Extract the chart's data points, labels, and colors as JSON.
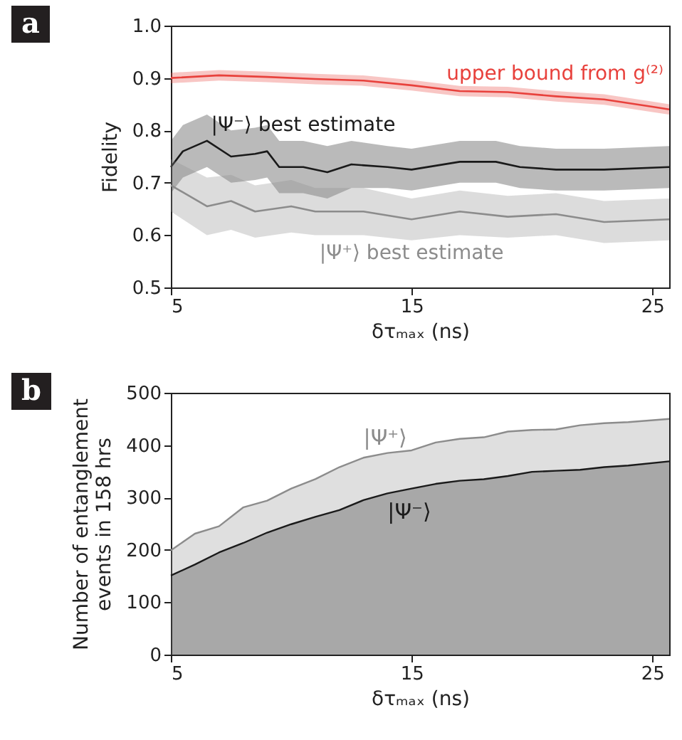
{
  "chart_data": [
    {
      "type": "line",
      "title": "a",
      "xlabel": "δτₘₐₓ (ns)",
      "ylabel": "Fidelity",
      "xlim": [
        5,
        25.7
      ],
      "xticks": [
        5,
        15,
        25
      ],
      "ylim": [
        0.5,
        1.0
      ],
      "yticks": [
        0.5,
        0.6,
        0.7,
        0.8,
        0.9,
        {
          "value": 1.0,
          "label": "1.0"
        }
      ],
      "grid": false,
      "marker": "none",
      "series": [
        {
          "name": "upper bound from g⁽²⁾",
          "color": "#e8413c",
          "x": [
            5,
            7,
            9,
            11,
            13,
            15,
            17,
            19,
            21,
            23,
            25,
            25.7
          ],
          "values": [
            0.9,
            0.905,
            0.902,
            0.898,
            0.895,
            0.886,
            0.875,
            0.873,
            0.865,
            0.859,
            0.845,
            0.84
          ],
          "lower": [
            0.89,
            0.895,
            0.892,
            0.888,
            0.885,
            0.876,
            0.865,
            0.863,
            0.855,
            0.849,
            0.835,
            0.83
          ],
          "upper": [
            0.91,
            0.915,
            0.912,
            0.908,
            0.905,
            0.896,
            0.885,
            0.883,
            0.875,
            0.869,
            0.855,
            0.85
          ]
        },
        {
          "name": "|Ψ⁻⟩ best estimate",
          "color": "#1a1a1a",
          "x": [
            5,
            5.5,
            6.5,
            7.5,
            8.5,
            9,
            9.5,
            10.5,
            11.5,
            12.5,
            14,
            15,
            17,
            18.5,
            19.5,
            21,
            23,
            25.7
          ],
          "values": [
            0.73,
            0.76,
            0.78,
            0.75,
            0.755,
            0.76,
            0.73,
            0.73,
            0.72,
            0.735,
            0.73,
            0.725,
            0.74,
            0.74,
            0.73,
            0.725,
            0.725,
            0.73
          ],
          "lower": [
            0.68,
            0.71,
            0.73,
            0.7,
            0.705,
            0.71,
            0.68,
            0.68,
            0.67,
            0.69,
            0.69,
            0.685,
            0.7,
            0.7,
            0.69,
            0.685,
            0.685,
            0.69
          ],
          "upper": [
            0.78,
            0.81,
            0.83,
            0.8,
            0.805,
            0.81,
            0.78,
            0.78,
            0.77,
            0.78,
            0.77,
            0.765,
            0.78,
            0.78,
            0.77,
            0.765,
            0.765,
            0.77
          ]
        },
        {
          "name": "|Ψ⁺⟩ best estimate",
          "color": "#8c8c8c",
          "x": [
            5,
            6.5,
            7.5,
            8.5,
            10,
            11,
            13,
            15,
            17,
            19,
            21,
            23,
            25.7
          ],
          "values": [
            0.695,
            0.655,
            0.665,
            0.645,
            0.655,
            0.645,
            0.645,
            0.63,
            0.645,
            0.635,
            0.64,
            0.625,
            0.63
          ],
          "lower": [
            0.645,
            0.6,
            0.61,
            0.595,
            0.605,
            0.6,
            0.6,
            0.59,
            0.6,
            0.595,
            0.6,
            0.585,
            0.59
          ],
          "upper": [
            0.745,
            0.71,
            0.715,
            0.695,
            0.705,
            0.69,
            0.69,
            0.67,
            0.685,
            0.675,
            0.68,
            0.665,
            0.67
          ]
        }
      ]
    },
    {
      "type": "area",
      "title": "b",
      "xlabel": "δτₘₐₓ (ns)",
      "ylabel": "Number of entanglement\nevents in 158 hrs",
      "xlim": [
        5,
        25.7
      ],
      "xticks": [
        5,
        15,
        25
      ],
      "ylim": [
        0,
        500
      ],
      "yticks": [
        0,
        100,
        200,
        300,
        400,
        500
      ],
      "grid": false,
      "x": [
        5,
        6,
        7,
        8,
        9,
        10,
        11,
        12,
        13,
        14,
        15,
        16,
        17,
        18,
        19,
        20,
        21,
        22,
        23,
        24,
        25.7
      ],
      "series": [
        {
          "name": "|Ψ⁺⟩",
          "color": "#8c8c8c",
          "values": [
            199,
            231,
            245,
            281,
            294,
            317,
            335,
            358,
            376,
            385,
            390,
            405,
            412,
            415,
            426,
            429,
            430,
            438,
            442,
            444,
            450
          ]
        },
        {
          "name": "|Ψ⁻⟩",
          "color": "#1a1a1a",
          "values": [
            151,
            172,
            195,
            213,
            233,
            249,
            263,
            276,
            295,
            308,
            317,
            326,
            332,
            335,
            341,
            349,
            351,
            353,
            358,
            361,
            369
          ]
        }
      ]
    }
  ]
}
